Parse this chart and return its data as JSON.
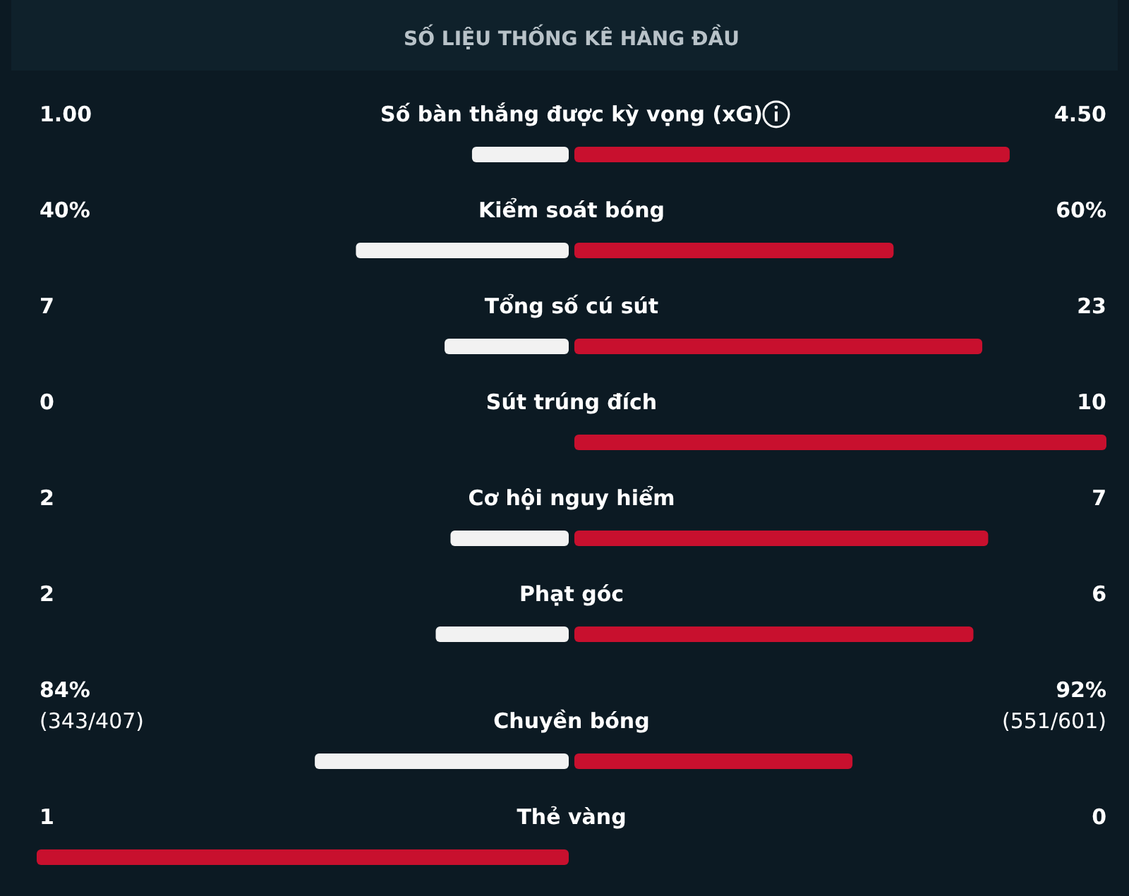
{
  "chart_data": {
    "type": "other",
    "title": "SỐ LIỆU THỐNG KÊ HÀNG ĐẦU",
    "categories": [
      "Số bàn thắng được kỳ vọng (xG)",
      "Kiểm soát bóng",
      "Tổng số cú sút",
      "Sút trúng đích",
      "Cơ hội nguy hiểm",
      "Phạt góc",
      "Chuyền bóng",
      "Thẻ vàng"
    ],
    "series": [
      {
        "colors": [
          "#f2f2f2",
          "#f2f2f2",
          "#f2f2f2",
          "#f2f2f2",
          "#f2f2f2",
          "#f2f2f2",
          "#f2f2f2",
          "#c8102e"
        ],
        "values": [
          1.0,
          40,
          7,
          0,
          2,
          2,
          84,
          1
        ],
        "value_labels": [
          "1.00",
          "40%",
          "7",
          "0",
          "2",
          "2",
          "84%\n(343/407)",
          "1"
        ]
      },
      {
        "colors": [
          "#c8102e",
          "#c8102e",
          "#c8102e",
          "#c8102e",
          "#c8102e",
          "#c8102e",
          "#c8102e",
          "#f2f2f2"
        ],
        "values": [
          4.5,
          60,
          23,
          10,
          7,
          6,
          92,
          0
        ],
        "value_labels": [
          "4.50",
          "60%",
          "23",
          "10",
          "7",
          "6",
          "92%\n(551/601)",
          "0"
        ]
      }
    ]
  }
}
